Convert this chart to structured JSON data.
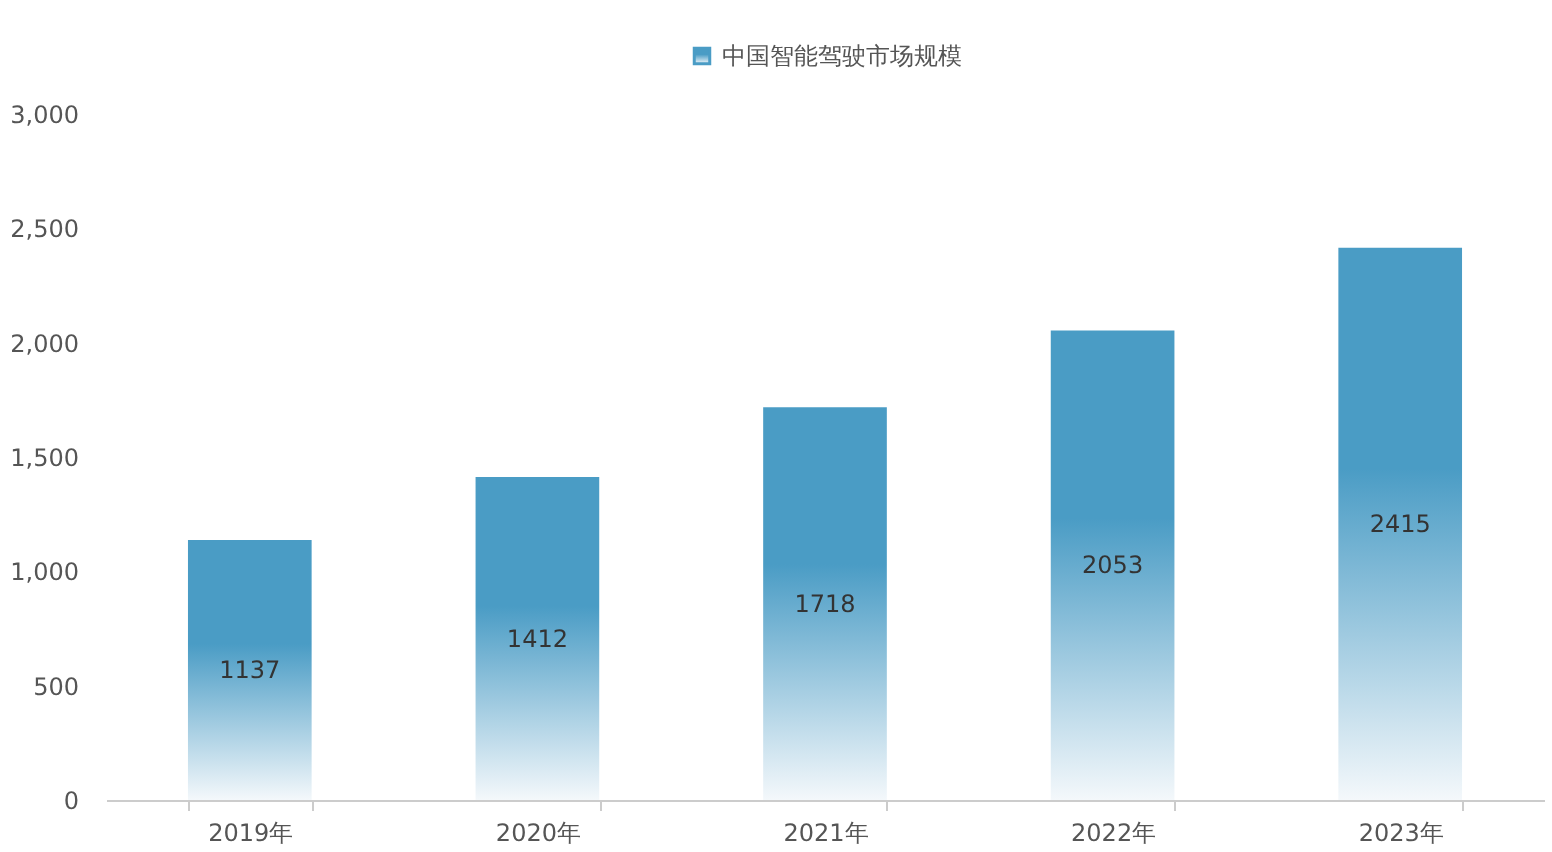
{
  "chart_data": {
    "type": "bar",
    "categories": [
      "2019年",
      "2020年",
      "2021年",
      "2022年",
      "2023年"
    ],
    "series": [
      {
        "name": "中国智能驾驶市场规模",
        "color": "#4a9cc5",
        "values": [
          1137,
          1412,
          1718,
          2053,
          2415
        ]
      }
    ],
    "ylim": [
      0,
      3000
    ],
    "yticks": [
      0,
      500,
      {
        "value": 1000,
        "label": "1,000"
      },
      {
        "value": 1500,
        "label": "1,500"
      },
      {
        "value": 2000,
        "label": "2,000"
      },
      {
        "value": 2500,
        "label": "2,500"
      },
      {
        "value": 3000,
        "label": "3,000"
      }
    ],
    "data_labels": true,
    "legend": "top"
  }
}
